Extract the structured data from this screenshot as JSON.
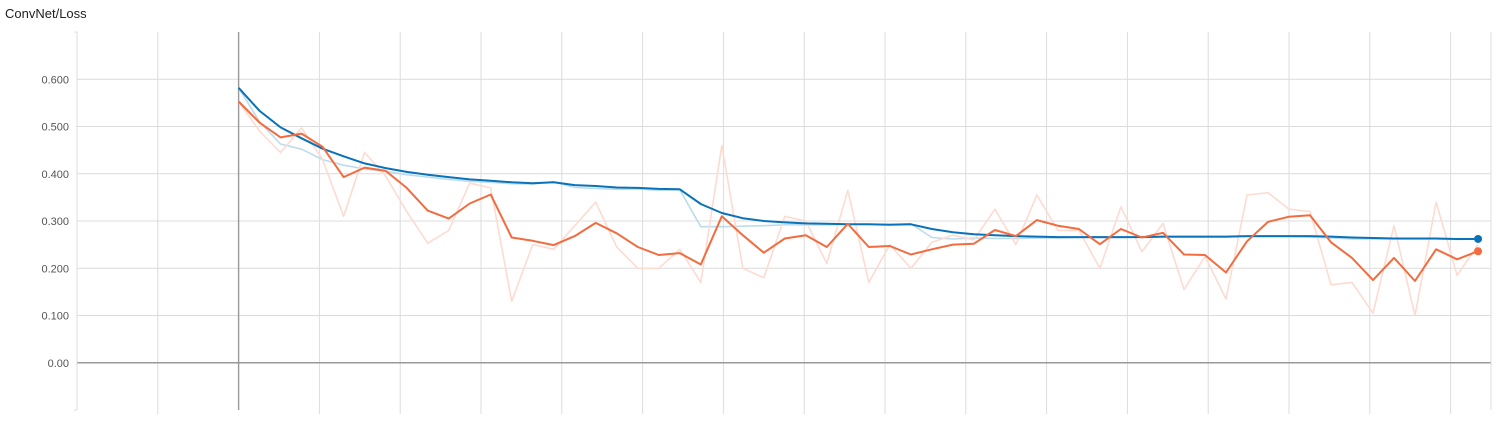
{
  "chart_data": {
    "type": "line",
    "title": "ConvNet/Loss",
    "y_ticks": [
      "0.600",
      "0.500",
      "0.400",
      "0.300",
      "0.200",
      "0.100",
      "0.00"
    ],
    "y_tick_values": [
      0.6,
      0.5,
      0.4,
      0.3,
      0.2,
      0.1,
      0.0
    ],
    "ylim": [
      -0.1,
      0.7
    ],
    "xlim": [
      -1.0,
      7.75
    ],
    "grid": true,
    "colors": {
      "blue": "#0a72b9",
      "blue_raw": "#bcdcec",
      "orange": "#f26c3f",
      "orange_raw": "#fddbd1",
      "grid": "#dcdcdc",
      "axis": "#999999"
    },
    "series": [
      {
        "color": "#0a72b9",
        "raw_color": "#bcdcec",
        "x": [
          0.0,
          0.13,
          0.26,
          0.39,
          0.52,
          0.65,
          0.78,
          0.91,
          1.04,
          1.17,
          1.3,
          1.43,
          1.56,
          1.69,
          1.82,
          1.95,
          2.08,
          2.21,
          2.34,
          2.47,
          2.6,
          2.73,
          2.86,
          2.99,
          3.12,
          3.25,
          3.38,
          3.51,
          3.64,
          3.77,
          3.9,
          4.03,
          4.16,
          4.29,
          4.42,
          4.55,
          4.68,
          4.81,
          4.94,
          5.07,
          5.2,
          5.33,
          5.46,
          5.59,
          5.72,
          5.85,
          5.98,
          6.11,
          6.24,
          6.37,
          6.5,
          6.63,
          6.76,
          6.89,
          7.02,
          7.15,
          7.28,
          7.41,
          7.54,
          7.67
        ],
        "values": [
          0.582,
          0.533,
          0.498,
          0.475,
          0.453,
          0.437,
          0.422,
          0.412,
          0.404,
          0.398,
          0.393,
          0.388,
          0.385,
          0.382,
          0.38,
          0.382,
          0.376,
          0.374,
          0.371,
          0.37,
          0.368,
          0.367,
          0.336,
          0.317,
          0.306,
          0.3,
          0.297,
          0.295,
          0.294,
          0.293,
          0.293,
          0.292,
          0.293,
          0.283,
          0.276,
          0.272,
          0.27,
          0.268,
          0.267,
          0.266,
          0.266,
          0.266,
          0.266,
          0.266,
          0.267,
          0.267,
          0.267,
          0.267,
          0.268,
          0.268,
          0.268,
          0.268,
          0.267,
          0.265,
          0.264,
          0.263,
          0.263,
          0.263,
          0.262,
          0.262
        ],
        "raw_values": [
          0.582,
          0.51,
          0.463,
          0.452,
          0.43,
          0.418,
          0.41,
          0.405,
          0.398,
          0.393,
          0.388,
          0.384,
          0.382,
          0.379,
          0.378,
          0.383,
          0.371,
          0.369,
          0.367,
          0.368,
          0.365,
          0.366,
          0.288,
          0.288,
          0.289,
          0.29,
          0.292,
          0.292,
          0.292,
          0.293,
          0.293,
          0.293,
          0.294,
          0.265,
          0.262,
          0.264,
          0.263,
          0.263,
          0.264,
          0.264,
          0.265,
          0.265,
          0.265,
          0.266,
          0.266,
          0.266,
          0.266,
          0.266,
          0.267,
          0.267,
          0.267,
          0.266,
          0.264,
          0.262,
          0.262,
          0.262,
          0.262,
          0.262,
          0.261,
          0.262
        ]
      },
      {
        "color": "#f26c3f",
        "raw_color": "#fddbd1",
        "x": [
          0.0,
          0.13,
          0.26,
          0.39,
          0.52,
          0.65,
          0.78,
          0.91,
          1.04,
          1.17,
          1.3,
          1.43,
          1.56,
          1.69,
          1.82,
          1.95,
          2.08,
          2.21,
          2.34,
          2.47,
          2.6,
          2.73,
          2.86,
          2.99,
          3.12,
          3.25,
          3.38,
          3.51,
          3.64,
          3.77,
          3.9,
          4.03,
          4.16,
          4.29,
          4.42,
          4.55,
          4.68,
          4.81,
          4.94,
          5.07,
          5.2,
          5.33,
          5.46,
          5.59,
          5.72,
          5.85,
          5.98,
          6.11,
          6.24,
          6.37,
          6.5,
          6.63,
          6.76,
          6.89,
          7.02,
          7.15,
          7.28,
          7.41,
          7.54,
          7.67
        ],
        "values": [
          0.553,
          0.508,
          0.477,
          0.485,
          0.457,
          0.393,
          0.413,
          0.406,
          0.37,
          0.322,
          0.305,
          0.337,
          0.356,
          0.265,
          0.258,
          0.249,
          0.268,
          0.296,
          0.274,
          0.245,
          0.228,
          0.232,
          0.208,
          0.31,
          0.27,
          0.233,
          0.263,
          0.27,
          0.245,
          0.294,
          0.245,
          0.247,
          0.229,
          0.24,
          0.25,
          0.252,
          0.281,
          0.268,
          0.302,
          0.29,
          0.283,
          0.251,
          0.283,
          0.265,
          0.275,
          0.229,
          0.228,
          0.191,
          0.257,
          0.298,
          0.309,
          0.312,
          0.255,
          0.222,
          0.175,
          0.222,
          0.173,
          0.24,
          0.219,
          0.236
        ],
        "raw_values": [
          0.553,
          0.49,
          0.445,
          0.497,
          0.43,
          0.31,
          0.445,
          0.395,
          0.32,
          0.253,
          0.28,
          0.38,
          0.37,
          0.13,
          0.25,
          0.24,
          0.29,
          0.34,
          0.245,
          0.2,
          0.2,
          0.24,
          0.17,
          0.46,
          0.2,
          0.18,
          0.31,
          0.3,
          0.21,
          0.365,
          0.17,
          0.25,
          0.2,
          0.255,
          0.27,
          0.26,
          0.325,
          0.25,
          0.355,
          0.28,
          0.28,
          0.2,
          0.33,
          0.235,
          0.295,
          0.155,
          0.225,
          0.135,
          0.355,
          0.36,
          0.325,
          0.32,
          0.165,
          0.17,
          0.105,
          0.29,
          0.1,
          0.34,
          0.185,
          0.25
        ]
      }
    ]
  }
}
